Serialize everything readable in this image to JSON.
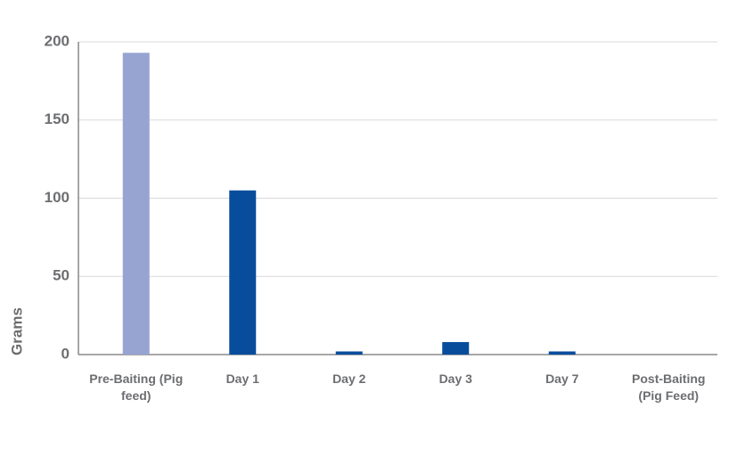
{
  "chart_data": {
    "type": "bar",
    "ylabel": "Grams",
    "categories": [
      "Pre-Baiting (Pig feed)",
      "Day 1",
      "Day 2",
      "Day 3",
      "Day 7",
      "Post-Baiting (Pig Feed)"
    ],
    "values": [
      193,
      105,
      2,
      8,
      2,
      0
    ],
    "colors": [
      "#97a4d2",
      "#084d9c",
      "#084d9c",
      "#084d9c",
      "#084d9c",
      "#084d9c"
    ],
    "ylim": [
      0,
      200
    ],
    "yticks": [
      0,
      50,
      100,
      150,
      200
    ],
    "grid": true
  }
}
